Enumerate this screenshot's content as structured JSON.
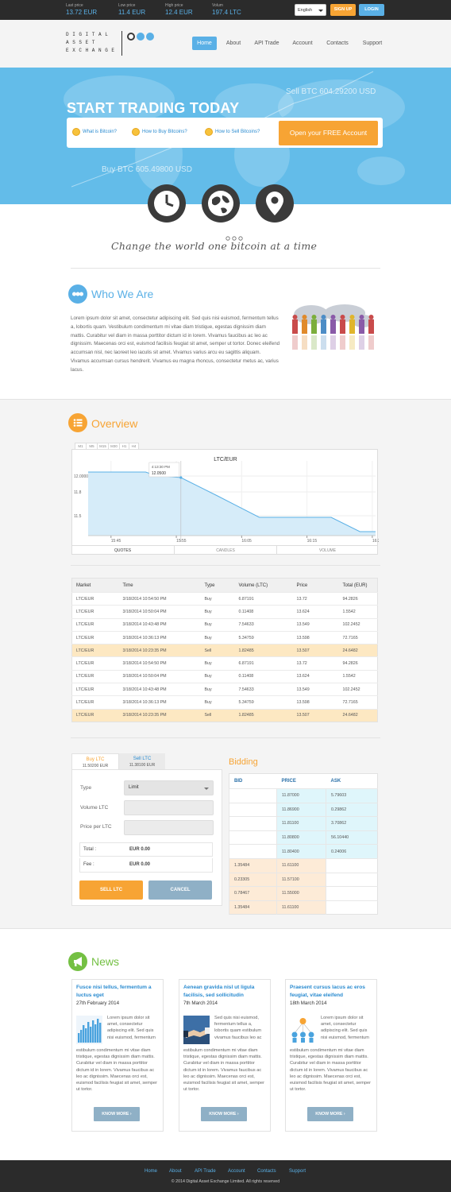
{
  "topbar": {
    "stats": [
      {
        "label": "Last price",
        "value": "13.72 EUR"
      },
      {
        "label": "Low price",
        "value": "11.4 EUR"
      },
      {
        "label": "High price",
        "value": "12.4 EUR"
      },
      {
        "label": "Volum",
        "value": "197.4 LTC"
      }
    ],
    "language": "English",
    "signup": "SIGN UP",
    "login": "LOGIN"
  },
  "header": {
    "logo_lines": [
      "DIGITAL",
      "ASSET",
      "EXCHANGE"
    ],
    "nav": [
      "Home",
      "About",
      "API Trade",
      "Account",
      "Contacts",
      "Support"
    ]
  },
  "hero": {
    "title": "START TRADING TODAY",
    "sell": "Sell BTC 604.29200 USD",
    "buy": "Buy BTC 605.49800 USD",
    "links": [
      "What is Bitcoin?",
      "How to Buy Bitcoins?",
      "How to Sell Bitcoins?"
    ],
    "cta": "Open your FREE Account",
    "tagline": "Change the world one bitcoin at a time"
  },
  "who": {
    "title": "Who We Are",
    "text": "Lorem ipsum dolor sit amet, consectetur adipiscing elit. Sed quis nisi euismod, fermentum tellus a, lobortis quam. Vestibulum condimentum mi vitae diam tristique, egestas dignissim diam mattis. Curabitur vel diam in massa porttitor dictum id in lorem. Vivamus faucibus ac leo ac dignissim. Maecenas orci est, euismod facilisis feugiat sit amet, semper ut tortor. Donec eleifend accumsan nisl, nec laoreet leo iaculis sit amet. Vivamus varius arcu eu sagittis aliquam. Vivamus accumsan cursus hendrerit. Vivamus eu magna rhoncus, consectetur metus ac, varius lacus."
  },
  "overview": {
    "title": "Overview",
    "timeframes": [
      "M1",
      "M5",
      "M15",
      "M30",
      "H1",
      "H4"
    ],
    "tabs": [
      "QUOTES",
      "CANDLES",
      "VOLUME"
    ],
    "tooltip_time": "4:13:30 PM",
    "tooltip_value": "12.0500"
  },
  "chart_data": {
    "type": "area",
    "title": "LTC/EUR",
    "x_ticks": [
      "15:45",
      "15:55",
      "16:05",
      "16:15",
      "16:25"
    ],
    "y_ticks": [
      "12.0000",
      "11.8",
      "11.5"
    ],
    "x": [
      0,
      0.72,
      0.88,
      1.02,
      1.42,
      1.98,
      2.62,
      3.2,
      3.72,
      4.16,
      4.4
    ],
    "y": [
      12.05,
      12.05,
      12.05,
      12.01,
      11.98,
      11.75,
      11.48,
      11.48,
      11.48,
      11.3,
      11.3
    ],
    "ylim": [
      11.25,
      12.25
    ],
    "grid": true
  },
  "trades": {
    "headers": [
      "Market",
      "Time",
      "Type",
      "Volume (LTC)",
      "Price",
      "Total (EUR)"
    ],
    "rows": [
      [
        "LTC/EUR",
        "3/18/2014 10:54:50 PM",
        "Buy",
        "6.87191",
        "13.72",
        "94.2826"
      ],
      [
        "LTC/EUR",
        "3/18/2014 10:50:04 PM",
        "Buy",
        "0.11408",
        "13.624",
        "1.5542"
      ],
      [
        "LTC/EUR",
        "3/18/2014 10:43:48 PM",
        "Buy",
        "7.54633",
        "13.549",
        "102.2452"
      ],
      [
        "LTC/EUR",
        "3/18/2014 10:36:13 PM",
        "Buy",
        "5.34759",
        "13.598",
        "72.7165"
      ],
      [
        "LTC/EUR",
        "3/18/2014 10:23:35 PM",
        "Sell",
        "1.82485",
        "13.507",
        "24.6482"
      ],
      [
        "LTC/EUR",
        "3/18/2014 10:54:50 PM",
        "Buy",
        "6.87191",
        "13.72",
        "94.2826"
      ],
      [
        "LTC/EUR",
        "3/18/2014 10:50:04 PM",
        "Buy",
        "0.11408",
        "13.624",
        "1.5542"
      ],
      [
        "LTC/EUR",
        "3/18/2014 10:43:48 PM",
        "Buy",
        "7.54633",
        "13.549",
        "102.2452"
      ],
      [
        "LTC/EUR",
        "3/18/2014 10:36:13 PM",
        "Buy",
        "5.34759",
        "13.598",
        "72.7165"
      ],
      [
        "LTC/EUR",
        "3/18/2014 10:23:35 PM",
        "Sell",
        "1.82485",
        "13.507",
        "24.6482"
      ]
    ],
    "highlight_rows": [
      4,
      9
    ]
  },
  "trade_form": {
    "tab_buy": "Buy LTC",
    "tab_buy_sub": "11.50200 EUR",
    "tab_sell": "Sell LTC",
    "tab_sell_sub": "11.38100 EUR",
    "type_label": "Type",
    "type_value": "Limit",
    "volume_label": "Volume LTC",
    "price_label": "Price per LTC",
    "total_label": "Total :",
    "total_value": "EUR 0.00",
    "fee_label": "Fee :",
    "fee_value": "EUR 0.00",
    "submit": "SELL LTC",
    "cancel": "CANCEL"
  },
  "bidding": {
    "title": "Bidding",
    "headers": [
      "BID",
      "PRICE",
      "ASK"
    ],
    "rows": [
      [
        "",
        "11.87000",
        "5.79603"
      ],
      [
        "",
        "11.86900",
        "0.29862"
      ],
      [
        "",
        "11.81100",
        "3.70862"
      ],
      [
        "",
        "11.80800",
        "56.10440"
      ],
      [
        "",
        "11.80400",
        "0.24006"
      ],
      [
        "1.35484",
        "11.61100",
        ""
      ],
      [
        "0.23305",
        "11.57100",
        ""
      ],
      [
        "0.78467",
        "11.55000",
        ""
      ],
      [
        "1.35484",
        "11.61100",
        ""
      ]
    ]
  },
  "news": {
    "title": "News",
    "items": [
      {
        "title": "Fusce nisi tellus, fermentum a luctus eget",
        "date": "27th February 2014",
        "lead": "Lorem ipsum dolor sit amet, consectetur adipiscing elit. Sed quis nisi euismod, fermentum",
        "body": "estibulum condimentum mi vitae diam tristique, egestas dignissim diam mattis. Curabitur vel diam in massa porttitor dictum id in lorem. Vivamus faucibus ac leo ac dignissim. Maecenas orci est, euismod facilisis feugiat sit amet, semper ut tortor.",
        "button": "KNOW MORE"
      },
      {
        "title": "Aenean gravida nisl ut ligula facilisis, sed sollicitudin",
        "date": "7th March 2014",
        "lead": "Sed quis nisi euismod, fermentum tellus a, lobortis quam estibulum vivamus faucibus leo ac",
        "body": "estibulum condimentum mi vitae diam tristique, egestas dignissim diam mattis. Curabitur vel diam in massa porttitor dictum id in lorem. Vivamus faucibus ac leo ac dignissim. Maecenas orci est, euismod facilisis feugiat sit amet, semper ut tortor.",
        "button": "KNOW MORE"
      },
      {
        "title": "Praesent cursus lacus ac eros feugiat, vitae eleifend",
        "date": "18th March 2014",
        "lead": "Lorem ipsum dolor sit amet, consectetur adipiscing elit. Sed quis nisi euismod, fermentum",
        "body": "estibulum condimentum mi vitae diam tristique, egestas dignissim diam mattis. Curabitur vel diam in massa porttitor dictum id in lorem. Vivamus faucibus ac leo ac dignissim. Maecenas orci est, euismod facilisis feugiat sit amet, semper ut tortor.",
        "button": "KNOW MORE"
      }
    ]
  },
  "footer": {
    "links": [
      "Home",
      "About",
      "API Trade",
      "Account",
      "Contacts",
      "Support"
    ],
    "copyright": "© 2014 Digital Asset Exchange Limited. All rights reserved"
  },
  "colors": {
    "accent_blue": "#5ab0e6",
    "accent_orange": "#f7a434",
    "dark": "#2b2b2b",
    "green": "#74c043"
  }
}
